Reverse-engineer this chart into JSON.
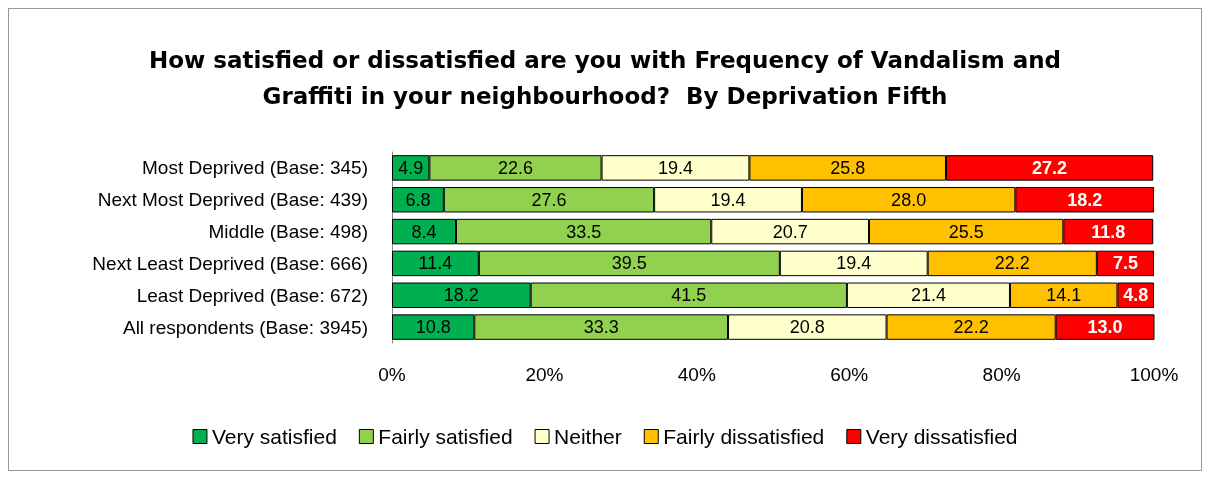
{
  "chart_data": {
    "type": "bar",
    "orientation": "horizontal",
    "stacked": true,
    "title": "How satisfied or dissatisfied are you with Frequency of Vandalism and\nGraffiti in your neighbourhood?  By Deprivation Fifth",
    "categories": [
      "Most Deprived (Base: 345)",
      "Next Most Deprived (Base: 439)",
      "Middle (Base: 498)",
      "Next Least Deprived (Base: 666)",
      "Least Deprived (Base: 672)",
      "All respondents (Base: 3945)"
    ],
    "series": [
      {
        "name": "Very satisfied",
        "color": "#00b050",
        "values": [
          4.9,
          6.8,
          8.4,
          11.4,
          18.2,
          10.8
        ],
        "value_labels": [
          "4.9",
          "6.8",
          "8.4",
          "11.4",
          "18.2",
          "10.8"
        ]
      },
      {
        "name": "Fairly satisfied",
        "color": "#92d050",
        "values": [
          22.6,
          27.6,
          33.5,
          39.5,
          41.5,
          33.3
        ],
        "value_labels": [
          "22.6",
          "27.6",
          "33.5",
          "39.5",
          "41.5",
          "33.3"
        ]
      },
      {
        "name": "Neither",
        "color": "#ffffcc",
        "values": [
          19.4,
          19.4,
          20.7,
          19.4,
          21.4,
          20.8
        ],
        "value_labels": [
          "19.4",
          "19.4",
          "20.7",
          "19.4",
          "21.4",
          "20.8"
        ]
      },
      {
        "name": "Fairly dissatisfied",
        "color": "#ffc000",
        "values": [
          25.8,
          28.0,
          25.5,
          22.2,
          14.1,
          22.2
        ],
        "value_labels": [
          "25.8",
          "28.0",
          "25.5",
          "22.2",
          "14.1",
          "22.2"
        ]
      },
      {
        "name": "Very dissatisfied",
        "color": "#ff0000",
        "values": [
          27.2,
          18.2,
          11.8,
          7.5,
          4.8,
          13.0
        ],
        "value_labels": [
          "27.2",
          "18.2",
          "11.8",
          "7.5",
          "4.8",
          "13.0"
        ]
      }
    ],
    "xlim": [
      0,
      100
    ],
    "xticks": [
      {
        "value": 0,
        "label": "0%"
      },
      {
        "value": 20,
        "label": "20%"
      },
      {
        "value": 40,
        "label": "40%"
      },
      {
        "value": 60,
        "label": "60%"
      },
      {
        "value": 80,
        "label": "80%"
      },
      {
        "value": 100,
        "label": "100%"
      }
    ],
    "legend": "bottom",
    "grid": false
  }
}
